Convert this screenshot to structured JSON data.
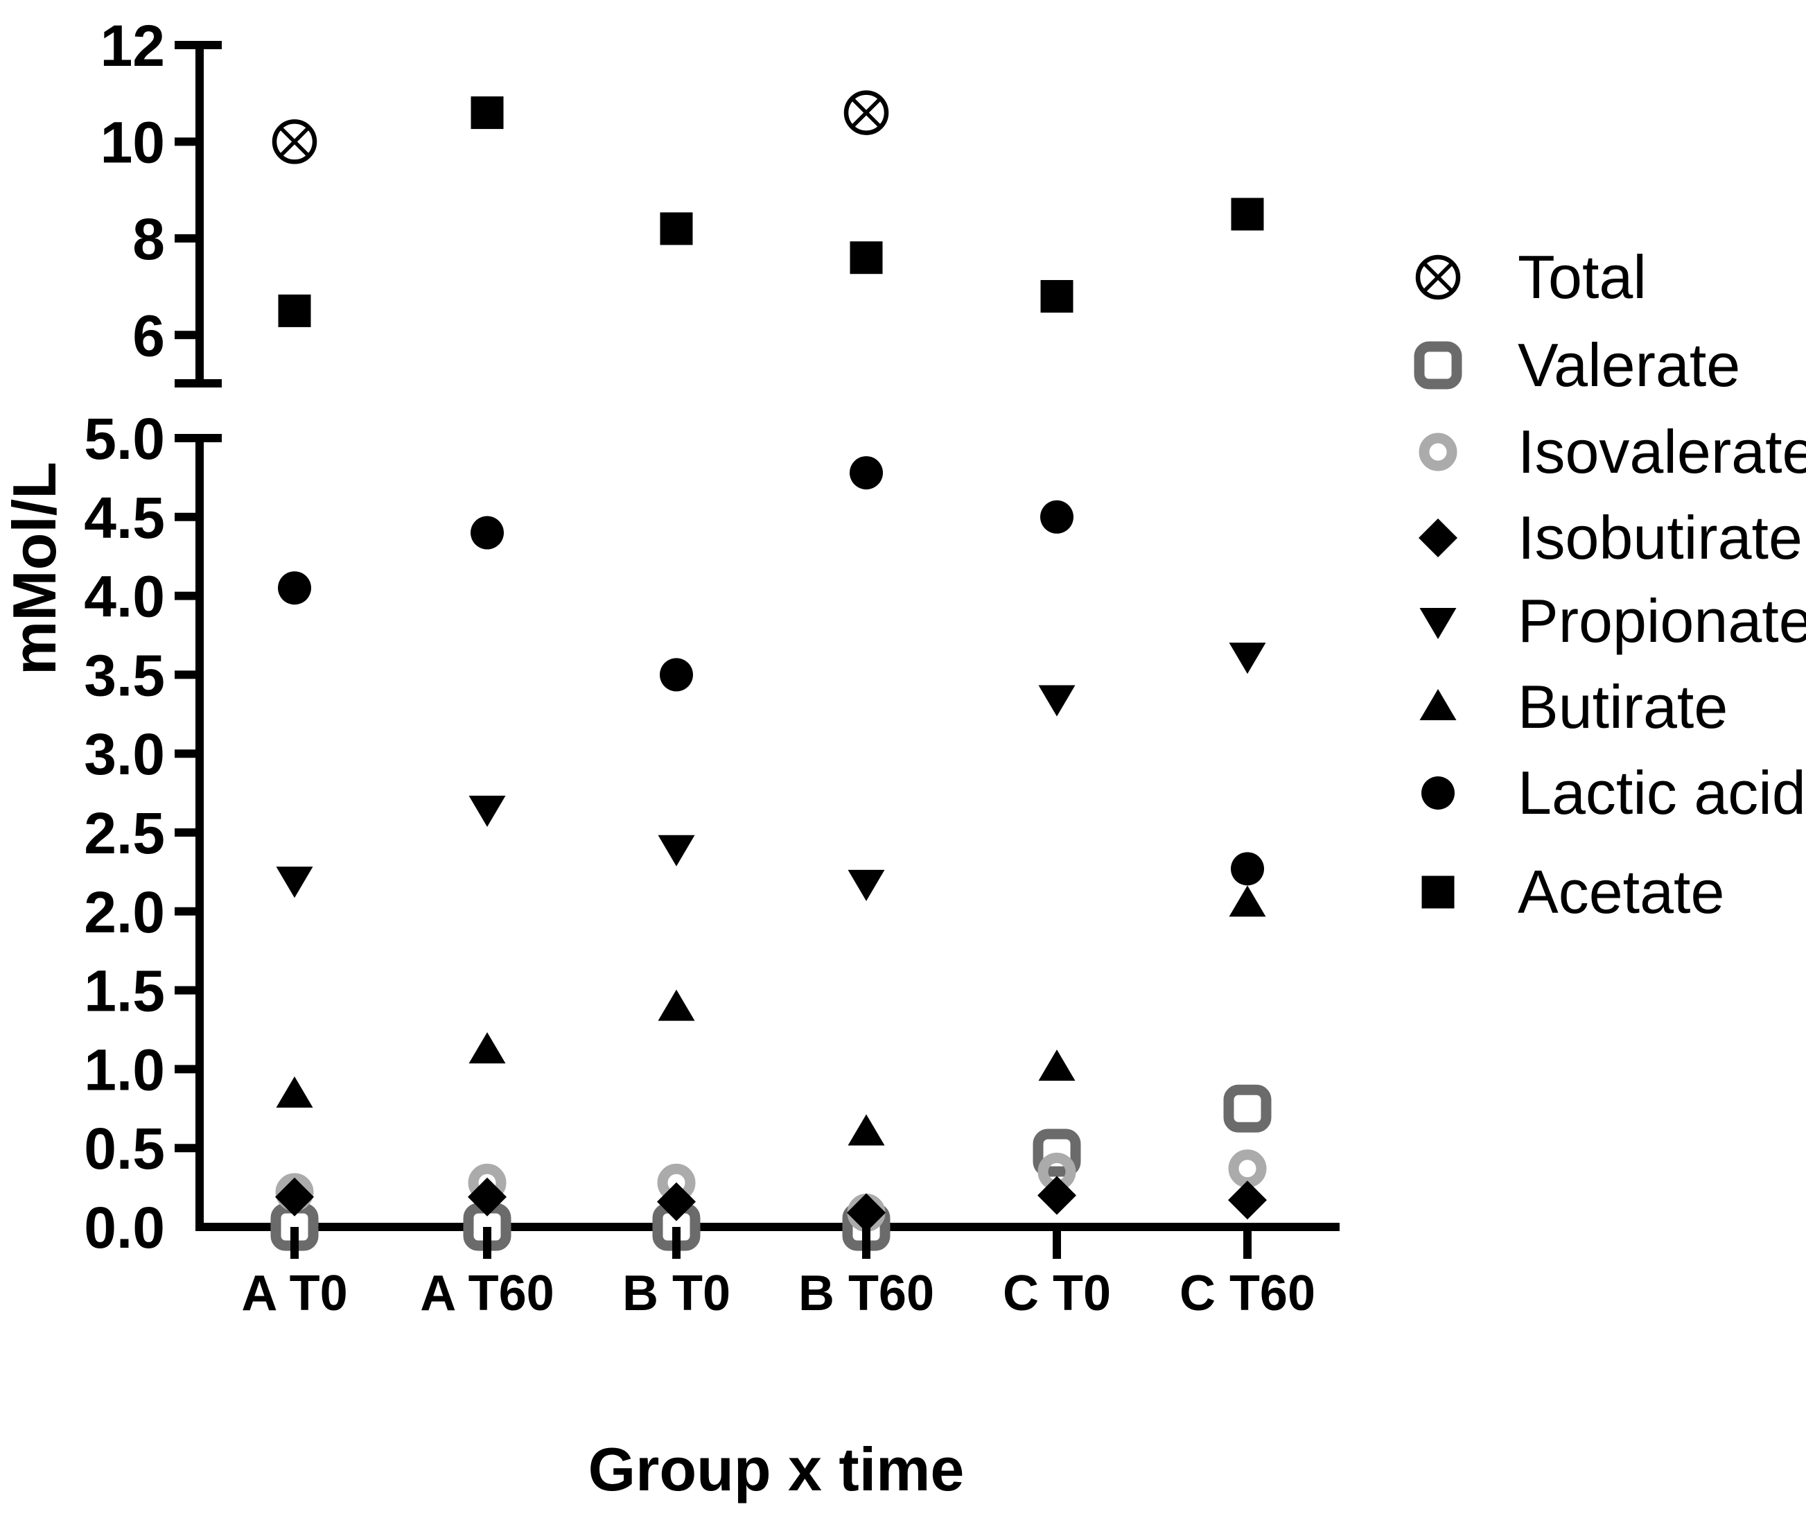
{
  "figure": {
    "background": "#ffffff",
    "accent_black": "#000000",
    "valerate_gray": "#6b6b6b",
    "isovalerate_gray": "#ababab"
  },
  "chart_data": {
    "type": "scatter",
    "title": "",
    "xlabel": "Group x time",
    "ylabel": "mMol/L",
    "grid": false,
    "legend_position": "right",
    "categories": [
      "A T0",
      "A T60",
      "B T0",
      "B T60",
      "C T0",
      "C T60"
    ],
    "y_axis": {
      "broken": true,
      "top_segment": {
        "min": 5,
        "max": 12,
        "tick_labels": [
          "12",
          "10",
          "8",
          "6"
        ],
        "tick_values": [
          12,
          10,
          8,
          6
        ]
      },
      "bottom_segment": {
        "min": 0,
        "max": 5,
        "tick_labels": [
          "5.0",
          "4.5",
          "4.0",
          "3.5",
          "3.0",
          "2.5",
          "2.0",
          "1.5",
          "1.0",
          "0.5",
          "0.0"
        ],
        "tick_values": [
          5.0,
          4.5,
          4.0,
          3.5,
          3.0,
          2.5,
          2.0,
          1.5,
          1.0,
          0.5,
          0.0
        ]
      }
    },
    "series": [
      {
        "name": "Total",
        "marker": "circle-x",
        "color": "#000000",
        "values": [
          10.0,
          null,
          null,
          10.6,
          null,
          null
        ]
      },
      {
        "name": "Valerate",
        "marker": "open-square",
        "color": "#6b6b6b",
        "values": [
          0.0,
          0.0,
          0.0,
          0.0,
          0.47,
          0.75
        ]
      },
      {
        "name": "Isovalerate",
        "marker": "open-circle",
        "color": "#ababab",
        "values": [
          0.22,
          0.28,
          0.28,
          0.09,
          0.35,
          0.37
        ]
      },
      {
        "name": "Isobutirate",
        "marker": "diamond",
        "color": "#000000",
        "values": [
          0.19,
          0.19,
          0.16,
          0.09,
          0.2,
          0.17
        ]
      },
      {
        "name": "Propionate",
        "marker": "triangle-down",
        "color": "#000000",
        "values": [
          2.2,
          2.65,
          2.4,
          2.18,
          3.35,
          3.62
        ]
      },
      {
        "name": "Butirate",
        "marker": "triangle-up",
        "color": "#000000",
        "values": [
          0.84,
          1.12,
          1.39,
          0.6,
          1.01,
          2.05
        ]
      },
      {
        "name": "Lactic acid",
        "marker": "circle",
        "color": "#000000",
        "values": [
          4.05,
          4.4,
          3.5,
          4.78,
          4.5,
          2.27
        ]
      },
      {
        "name": "Acetate",
        "marker": "square",
        "color": "#000000",
        "values": [
          6.5,
          10.6,
          8.2,
          7.6,
          6.8,
          8.5
        ]
      }
    ],
    "draw_order": [
      "Valerate",
      "Isovalerate",
      "Isobutirate",
      "Propionate",
      "Butirate",
      "Lactic acid",
      "Acetate",
      "Total"
    ],
    "legend_order": [
      "Total",
      "Valerate",
      "Isovalerate",
      "Isobutirate",
      "Propionate",
      "Butirate",
      "Lactic acid",
      "Acetate"
    ]
  }
}
